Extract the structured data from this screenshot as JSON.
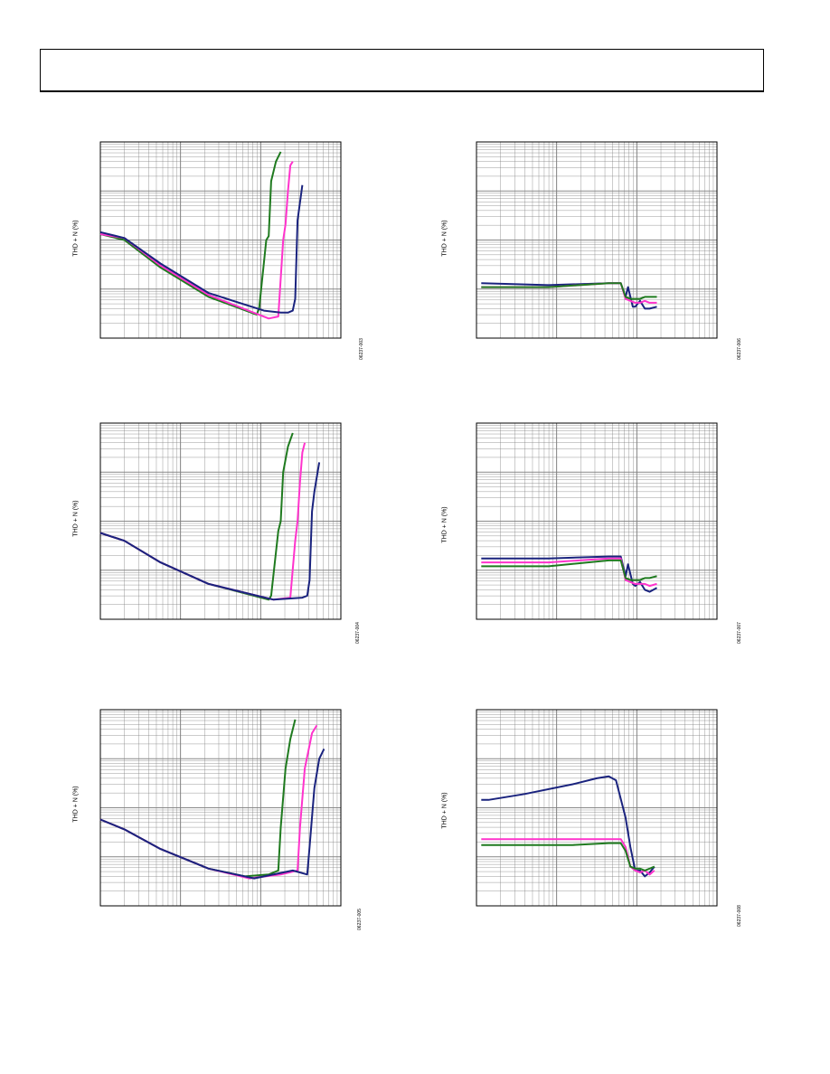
{
  "page": {
    "header_text": ""
  },
  "colors": {
    "blue": "#1a237e",
    "magenta": "#ff33cc",
    "green": "#1f7a1f",
    "grid": "#808080"
  },
  "chart_data": [
    {
      "id": "fig-left-1",
      "type": "line",
      "ylabel": "THD + N (%)",
      "figure_id": "06237-003",
      "x_scale": "log",
      "y_scale": "log",
      "series": [
        {
          "color": "green",
          "x": [
            0,
            0.1,
            0.25,
            0.45,
            0.65,
            0.66,
            0.69,
            0.7,
            0.71,
            0.73,
            0.75
          ],
          "y": [
            0.47,
            0.5,
            0.64,
            0.79,
            0.88,
            0.85,
            0.5,
            0.48,
            0.2,
            0.1,
            0.05
          ]
        },
        {
          "color": "magenta",
          "x": [
            0,
            0.1,
            0.25,
            0.45,
            0.7,
            0.74,
            0.76,
            0.77,
            0.78,
            0.79,
            0.8
          ],
          "y": [
            0.47,
            0.49,
            0.63,
            0.78,
            0.9,
            0.89,
            0.5,
            0.42,
            0.25,
            0.12,
            0.1
          ]
        },
        {
          "color": "blue",
          "x": [
            0,
            0.1,
            0.25,
            0.45,
            0.68,
            0.75,
            0.78,
            0.8,
            0.81,
            0.82,
            0.84
          ],
          "y": [
            0.46,
            0.49,
            0.62,
            0.77,
            0.86,
            0.87,
            0.87,
            0.86,
            0.8,
            0.4,
            0.22
          ]
        }
      ]
    },
    {
      "id": "fig-left-2",
      "type": "line",
      "ylabel": "THD + N (%)",
      "figure_id": "06237-004",
      "x_scale": "log",
      "y_scale": "log",
      "series": [
        {
          "color": "green",
          "x": [
            0,
            0.1,
            0.25,
            0.45,
            0.7,
            0.71,
            0.74,
            0.75,
            0.76,
            0.78,
            0.8
          ],
          "y": [
            0.56,
            0.6,
            0.71,
            0.82,
            0.9,
            0.88,
            0.55,
            0.5,
            0.25,
            0.12,
            0.05
          ]
        },
        {
          "color": "magenta",
          "x": [
            0,
            0.1,
            0.25,
            0.45,
            0.72,
            0.79,
            0.81,
            0.82,
            0.83,
            0.84,
            0.85
          ],
          "y": [
            0.56,
            0.6,
            0.71,
            0.82,
            0.9,
            0.89,
            0.6,
            0.5,
            0.3,
            0.15,
            0.1
          ]
        },
        {
          "color": "blue",
          "x": [
            0,
            0.1,
            0.25,
            0.45,
            0.72,
            0.84,
            0.86,
            0.87,
            0.88,
            0.89,
            0.91
          ],
          "y": [
            0.56,
            0.6,
            0.71,
            0.82,
            0.9,
            0.89,
            0.88,
            0.8,
            0.45,
            0.35,
            0.2
          ]
        }
      ]
    },
    {
      "id": "fig-left-3",
      "type": "line",
      "ylabel": "THD + N (%)",
      "figure_id": "06237-005",
      "x_scale": "log",
      "y_scale": "log",
      "series": [
        {
          "color": "green",
          "x": [
            0,
            0.1,
            0.25,
            0.45,
            0.6,
            0.7,
            0.74,
            0.75,
            0.77,
            0.79,
            0.81
          ],
          "y": [
            0.56,
            0.61,
            0.71,
            0.81,
            0.85,
            0.84,
            0.82,
            0.6,
            0.3,
            0.15,
            0.05
          ]
        },
        {
          "color": "magenta",
          "x": [
            0,
            0.1,
            0.25,
            0.45,
            0.62,
            0.75,
            0.82,
            0.83,
            0.85,
            0.88,
            0.9
          ],
          "y": [
            0.56,
            0.61,
            0.71,
            0.81,
            0.86,
            0.84,
            0.82,
            0.6,
            0.3,
            0.12,
            0.08
          ]
        },
        {
          "color": "blue",
          "x": [
            0,
            0.1,
            0.25,
            0.45,
            0.64,
            0.8,
            0.86,
            0.87,
            0.89,
            0.91,
            0.93
          ],
          "y": [
            0.56,
            0.61,
            0.71,
            0.81,
            0.86,
            0.82,
            0.84,
            0.7,
            0.4,
            0.25,
            0.2
          ]
        }
      ]
    },
    {
      "id": "fig-right-1",
      "type": "line",
      "ylabel": "THD + N (%)",
      "figure_id": "06237-006",
      "x_scale": "log",
      "y_scale": "log",
      "series": [
        {
          "color": "blue",
          "x": [
            0.02,
            0.3,
            0.55,
            0.6,
            0.62,
            0.63,
            0.65,
            0.66,
            0.68,
            0.7,
            0.72,
            0.75
          ],
          "y": [
            0.72,
            0.73,
            0.72,
            0.72,
            0.79,
            0.74,
            0.84,
            0.84,
            0.81,
            0.85,
            0.85,
            0.84
          ]
        },
        {
          "color": "magenta",
          "x": [
            0.02,
            0.3,
            0.55,
            0.6,
            0.62,
            0.64,
            0.66,
            0.68,
            0.7,
            0.72,
            0.75
          ],
          "y": [
            0.74,
            0.74,
            0.72,
            0.72,
            0.8,
            0.81,
            0.82,
            0.82,
            0.81,
            0.82,
            0.82
          ]
        },
        {
          "color": "green",
          "x": [
            0.02,
            0.3,
            0.55,
            0.6,
            0.62,
            0.64,
            0.66,
            0.68,
            0.7,
            0.72,
            0.75
          ],
          "y": [
            0.74,
            0.74,
            0.72,
            0.72,
            0.79,
            0.8,
            0.8,
            0.8,
            0.79,
            0.79,
            0.79
          ]
        }
      ]
    },
    {
      "id": "fig-right-2",
      "type": "line",
      "ylabel": "THD + N (%)",
      "figure_id": "06237-007",
      "x_scale": "log",
      "y_scale": "log",
      "series": [
        {
          "color": "blue",
          "x": [
            0.02,
            0.3,
            0.55,
            0.6,
            0.62,
            0.63,
            0.65,
            0.66,
            0.68,
            0.7,
            0.72,
            0.75
          ],
          "y": [
            0.69,
            0.69,
            0.68,
            0.68,
            0.78,
            0.72,
            0.82,
            0.83,
            0.81,
            0.85,
            0.86,
            0.84
          ]
        },
        {
          "color": "magenta",
          "x": [
            0.02,
            0.3,
            0.55,
            0.6,
            0.62,
            0.64,
            0.66,
            0.68,
            0.7,
            0.72,
            0.75
          ],
          "y": [
            0.71,
            0.71,
            0.69,
            0.69,
            0.8,
            0.81,
            0.82,
            0.82,
            0.82,
            0.83,
            0.82
          ]
        },
        {
          "color": "green",
          "x": [
            0.02,
            0.3,
            0.55,
            0.6,
            0.62,
            0.64,
            0.66,
            0.68,
            0.7,
            0.72,
            0.75
          ],
          "y": [
            0.73,
            0.73,
            0.7,
            0.7,
            0.79,
            0.8,
            0.8,
            0.8,
            0.79,
            0.79,
            0.78
          ]
        }
      ]
    },
    {
      "id": "fig-right-3",
      "type": "line",
      "ylabel": "THD + N (%)",
      "figure_id": "06237-008",
      "x_scale": "log",
      "y_scale": "log",
      "series": [
        {
          "color": "blue",
          "x": [
            0.02,
            0.05,
            0.2,
            0.4,
            0.5,
            0.55,
            0.58,
            0.62,
            0.64,
            0.66,
            0.68,
            0.7,
            0.72,
            0.74
          ],
          "y": [
            0.46,
            0.46,
            0.43,
            0.38,
            0.35,
            0.34,
            0.36,
            0.55,
            0.7,
            0.82,
            0.82,
            0.85,
            0.83,
            0.8
          ]
        },
        {
          "color": "magenta",
          "x": [
            0.02,
            0.2,
            0.4,
            0.55,
            0.6,
            0.62,
            0.64,
            0.66,
            0.68,
            0.7,
            0.72,
            0.74
          ],
          "y": [
            0.66,
            0.66,
            0.66,
            0.66,
            0.66,
            0.7,
            0.8,
            0.82,
            0.83,
            0.82,
            0.84,
            0.82
          ]
        },
        {
          "color": "green",
          "x": [
            0.02,
            0.2,
            0.4,
            0.55,
            0.6,
            0.62,
            0.64,
            0.66,
            0.68,
            0.7,
            0.72,
            0.74
          ],
          "y": [
            0.69,
            0.69,
            0.69,
            0.68,
            0.68,
            0.72,
            0.8,
            0.81,
            0.81,
            0.82,
            0.81,
            0.8
          ]
        }
      ]
    }
  ]
}
